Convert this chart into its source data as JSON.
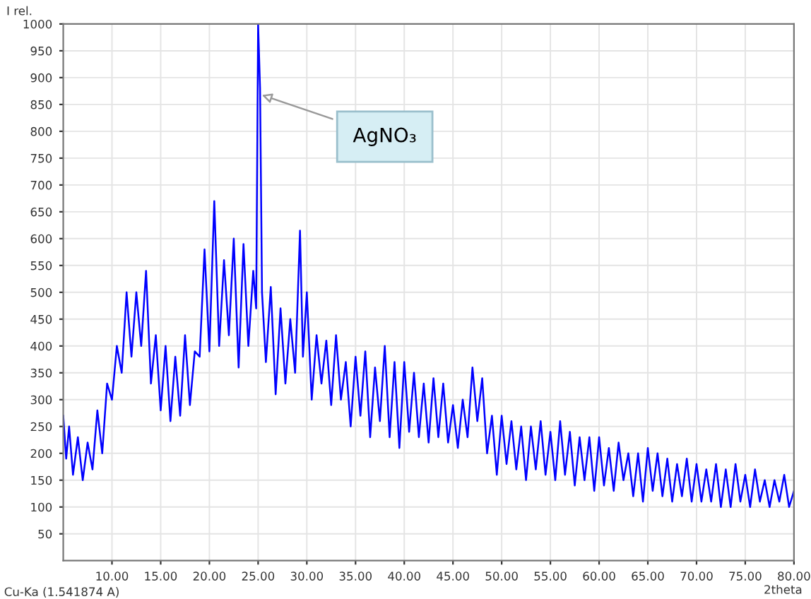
{
  "chart_data": {
    "type": "line",
    "xlabel": "2theta",
    "ylabel": "I rel.",
    "annotations": [
      {
        "text": "AgNO₃",
        "x": 25.0,
        "y": 870
      },
      "Cu-Ka (1.541874 A)"
    ],
    "xlim": [
      5,
      80
    ],
    "ylim": [
      0,
      1000
    ],
    "xticks": [
      {
        "value": 10,
        "label": "10.00"
      },
      {
        "value": 15,
        "label": "15.00"
      },
      {
        "value": 20,
        "label": "20.00"
      },
      {
        "value": 25,
        "label": "25.00"
      },
      {
        "value": 30,
        "label": "30.00"
      },
      {
        "value": 35,
        "label": "35.00"
      },
      {
        "value": 40,
        "label": "40.00"
      },
      {
        "value": 45,
        "label": "45.00"
      },
      {
        "value": 50,
        "label": "50.00"
      },
      {
        "value": 55,
        "label": "55.00"
      },
      {
        "value": 60,
        "label": "60.00"
      },
      {
        "value": 65,
        "label": "65.00"
      },
      {
        "value": 70,
        "label": "70.00"
      },
      {
        "value": 75,
        "label": "75.00"
      },
      {
        "value": 80,
        "label": "80.00"
      }
    ],
    "yticks": [
      50,
      100,
      150,
      200,
      250,
      300,
      350,
      400,
      450,
      500,
      550,
      600,
      650,
      700,
      750,
      800,
      850,
      900,
      950,
      1000
    ],
    "grid": true,
    "marker": "none",
    "line_style": "solid",
    "series": [
      {
        "color": "#0000ff",
        "x": [
          5,
          5.3,
          5.6,
          6,
          6.5,
          7,
          7.5,
          8,
          8.5,
          9,
          9.5,
          10,
          10.5,
          11,
          11.5,
          12,
          12.5,
          13,
          13.5,
          14,
          14.5,
          15,
          15.5,
          16,
          16.5,
          17,
          17.5,
          18,
          18.5,
          19,
          19.5,
          20,
          20.5,
          21,
          21.5,
          22,
          22.5,
          23,
          23.5,
          24,
          24.5,
          24.8,
          25.0,
          25.2,
          25.4,
          25.8,
          26.3,
          26.8,
          27.3,
          27.8,
          28.3,
          28.8,
          29.3,
          29.6,
          30,
          30.5,
          31,
          31.5,
          32,
          32.5,
          33,
          33.5,
          34,
          34.5,
          35,
          35.5,
          36,
          36.5,
          37,
          37.5,
          38,
          38.5,
          39,
          39.5,
          40,
          40.5,
          41,
          41.5,
          42,
          42.5,
          43,
          43.5,
          44,
          44.5,
          45,
          45.5,
          46,
          46.5,
          47,
          47.5,
          48,
          48.5,
          49,
          49.5,
          50,
          50.5,
          51,
          51.5,
          52,
          52.5,
          53,
          53.5,
          54,
          54.5,
          55,
          55.5,
          56,
          56.5,
          57,
          57.5,
          58,
          58.5,
          59,
          59.5,
          60,
          60.5,
          61,
          61.5,
          62,
          62.5,
          63,
          63.5,
          64,
          64.5,
          65,
          65.5,
          66,
          66.5,
          67,
          67.5,
          68,
          68.5,
          69,
          69.5,
          70,
          70.5,
          71,
          71.5,
          72,
          72.5,
          73,
          73.5,
          74,
          74.5,
          75,
          75.5,
          76,
          76.5,
          77,
          77.5,
          78,
          78.5,
          79,
          79.5,
          80
        ],
        "values": [
          270,
          190,
          250,
          160,
          230,
          150,
          220,
          170,
          280,
          200,
          330,
          300,
          400,
          350,
          500,
          380,
          500,
          400,
          540,
          330,
          420,
          280,
          400,
          260,
          380,
          270,
          420,
          290,
          390,
          380,
          580,
          390,
          670,
          400,
          560,
          420,
          600,
          360,
          590,
          400,
          540,
          470,
          1000,
          880,
          500,
          370,
          510,
          310,
          470,
          330,
          450,
          350,
          615,
          380,
          500,
          300,
          420,
          330,
          410,
          290,
          420,
          300,
          370,
          250,
          380,
          270,
          390,
          230,
          360,
          260,
          400,
          230,
          370,
          210,
          370,
          240,
          350,
          230,
          330,
          220,
          340,
          230,
          330,
          220,
          290,
          210,
          300,
          230,
          360,
          260,
          340,
          200,
          270,
          160,
          270,
          180,
          260,
          170,
          250,
          150,
          250,
          170,
          260,
          160,
          240,
          150,
          260,
          160,
          240,
          140,
          230,
          150,
          230,
          130,
          230,
          140,
          210,
          130,
          220,
          150,
          200,
          120,
          200,
          110,
          210,
          130,
          200,
          120,
          190,
          110,
          180,
          120,
          190,
          110,
          180,
          110,
          170,
          110,
          180,
          100,
          170,
          100,
          180,
          110,
          160,
          100,
          170,
          110,
          150,
          100,
          150,
          110,
          160,
          100,
          130
        ]
      }
    ]
  }
}
